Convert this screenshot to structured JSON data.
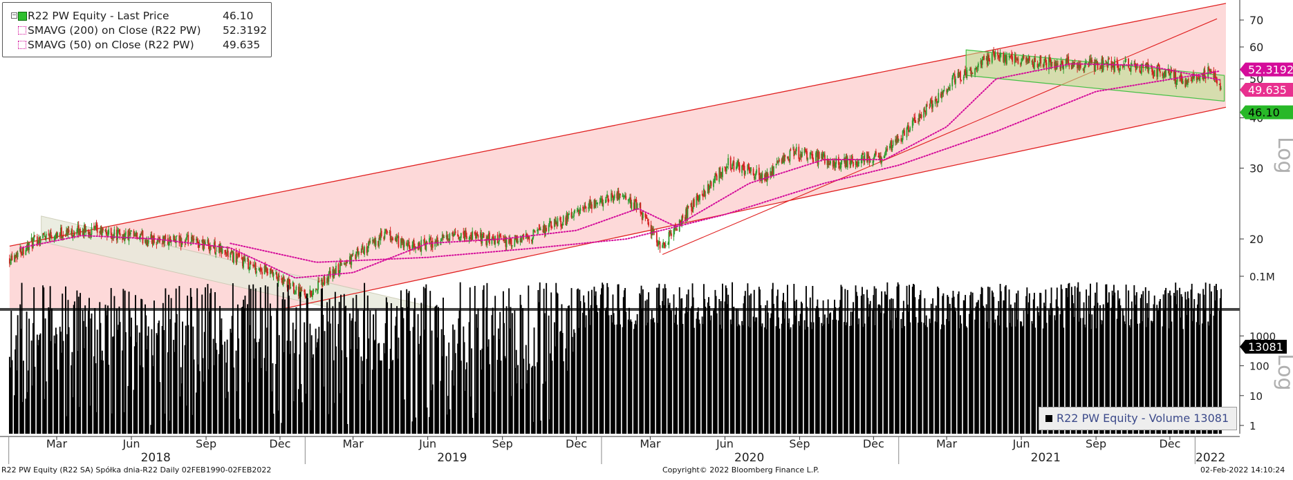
{
  "legend": {
    "last_price": {
      "label": "R22 PW Equity - Last Price",
      "value": "46.10"
    },
    "sma200": {
      "label": "SMAVG (200)  on Close (R22 PW)",
      "value": "52.3192"
    },
    "sma50": {
      "label": "SMAVG (50)  on Close (R22 PW)",
      "value": "49.635"
    }
  },
  "volume_legend": {
    "label": "R22 PW Equity - Volume 13081"
  },
  "footer": {
    "left": "R22 PW Equity (R22 SA) Spółka dnia-R22  Daily 02FEB1990-02FEB2022",
    "center": "Copyright© 2022 Bloomberg Finance L.P.",
    "right": "02-Feb-2022 14:10:24"
  },
  "colors": {
    "up": "#2e9b2e",
    "down": "#d42020",
    "channel_fill": "#fdd9d9",
    "channel_line": "#e02020",
    "sma": "#d40c9a",
    "green_box": "#b6e08a",
    "tag_sma200": "#d40c9a",
    "tag_sma50": "#e8308f",
    "tag_price": "#28b828",
    "tag_volume": "#000000"
  },
  "chart_data": [
    {
      "type": "candlestick",
      "title": "",
      "y_scale": "log",
      "ylabel": "Log",
      "y_ticks": [
        20,
        30,
        40,
        50,
        60,
        70
      ],
      "x_month_ticks": [
        "Mar",
        "Jun",
        "Sep",
        "Dec",
        "Mar",
        "Jun",
        "Sep",
        "Dec",
        "Mar",
        "Jun",
        "Sep",
        "Dec",
        "Mar",
        "Jun",
        "Sep",
        "Dec"
      ],
      "x_year_labels": [
        "2018",
        "2019",
        "2020",
        "2021",
        "2022"
      ],
      "price_tags": [
        {
          "name": "SMAVG (200)",
          "value": "52.3192"
        },
        {
          "name": "SMAVG (50)",
          "value": "49.635"
        },
        {
          "name": "Last Price",
          "value": "46.10"
        }
      ],
      "series_keypoints": {
        "dates": [
          "2018-01-02",
          "2018-02-15",
          "2018-04-10",
          "2018-06-20",
          "2018-09-01",
          "2018-11-15",
          "2019-01-05",
          "2019-02-20",
          "2019-04-10",
          "2019-05-10",
          "2019-07-15",
          "2019-09-15",
          "2019-11-20",
          "2020-01-20",
          "2020-02-15",
          "2020-03-15",
          "2020-04-20",
          "2020-06-05",
          "2020-07-20",
          "2020-08-25",
          "2020-10-20",
          "2020-12-10",
          "2021-01-20",
          "2021-03-10",
          "2021-04-25",
          "2021-06-10",
          "2021-08-10",
          "2021-10-10",
          "2021-11-25",
          "2021-12-20",
          "2022-01-20",
          "2022-02-02"
        ],
        "close": [
          18.0,
          20.5,
          21.0,
          20.0,
          19.5,
          16.5,
          14.5,
          17.5,
          20.5,
          19.0,
          20.5,
          19.5,
          22.5,
          26.0,
          24.0,
          19.0,
          24.0,
          31.0,
          28.5,
          33.0,
          31.0,
          32.0,
          39.0,
          50.0,
          57.0,
          55.0,
          54.5,
          54.0,
          52.0,
          49.0,
          52.0,
          46.1
        ]
      },
      "sma200_keypoints": {
        "dates": [
          "2018-10-01",
          "2019-01-15",
          "2019-06-01",
          "2019-10-01",
          "2020-02-01",
          "2020-06-01",
          "2020-10-01",
          "2021-01-01",
          "2021-05-01",
          "2021-09-01",
          "2022-02-02"
        ],
        "values": [
          19.5,
          17.5,
          18.0,
          18.9,
          20.0,
          23.0,
          27.5,
          30.5,
          37.0,
          46.5,
          52.3192
        ]
      },
      "sma50_keypoints": {
        "dates": [
          "2018-01-15",
          "2018-04-01",
          "2018-07-01",
          "2018-10-01",
          "2018-12-20",
          "2019-03-01",
          "2019-06-01",
          "2019-09-01",
          "2019-12-01",
          "2020-02-15",
          "2020-04-01",
          "2020-07-01",
          "2020-10-01",
          "2020-12-15",
          "2021-03-01",
          "2021-05-01",
          "2021-08-01",
          "2021-11-01",
          "2022-02-02"
        ],
        "values": [
          19.0,
          20.4,
          20.0,
          19.0,
          16.0,
          16.5,
          19.5,
          20.0,
          21.0,
          23.8,
          21.5,
          27.5,
          31.5,
          31.5,
          38.0,
          50.0,
          54.5,
          54.0,
          49.635
        ]
      },
      "channels": [
        "rising regression channel (red, shaded)",
        "2018 falling channel (grey)",
        "2021 falling channel (green)",
        "rising trendline from 2020 low"
      ]
    },
    {
      "type": "bar",
      "title": "",
      "y_scale": "log",
      "ylabel": "Log",
      "y_ticks": [
        "1",
        "10",
        "100",
        "1000",
        "0.1M"
      ],
      "last_value": "13081",
      "typical_range": [
        100,
        100000
      ]
    }
  ]
}
